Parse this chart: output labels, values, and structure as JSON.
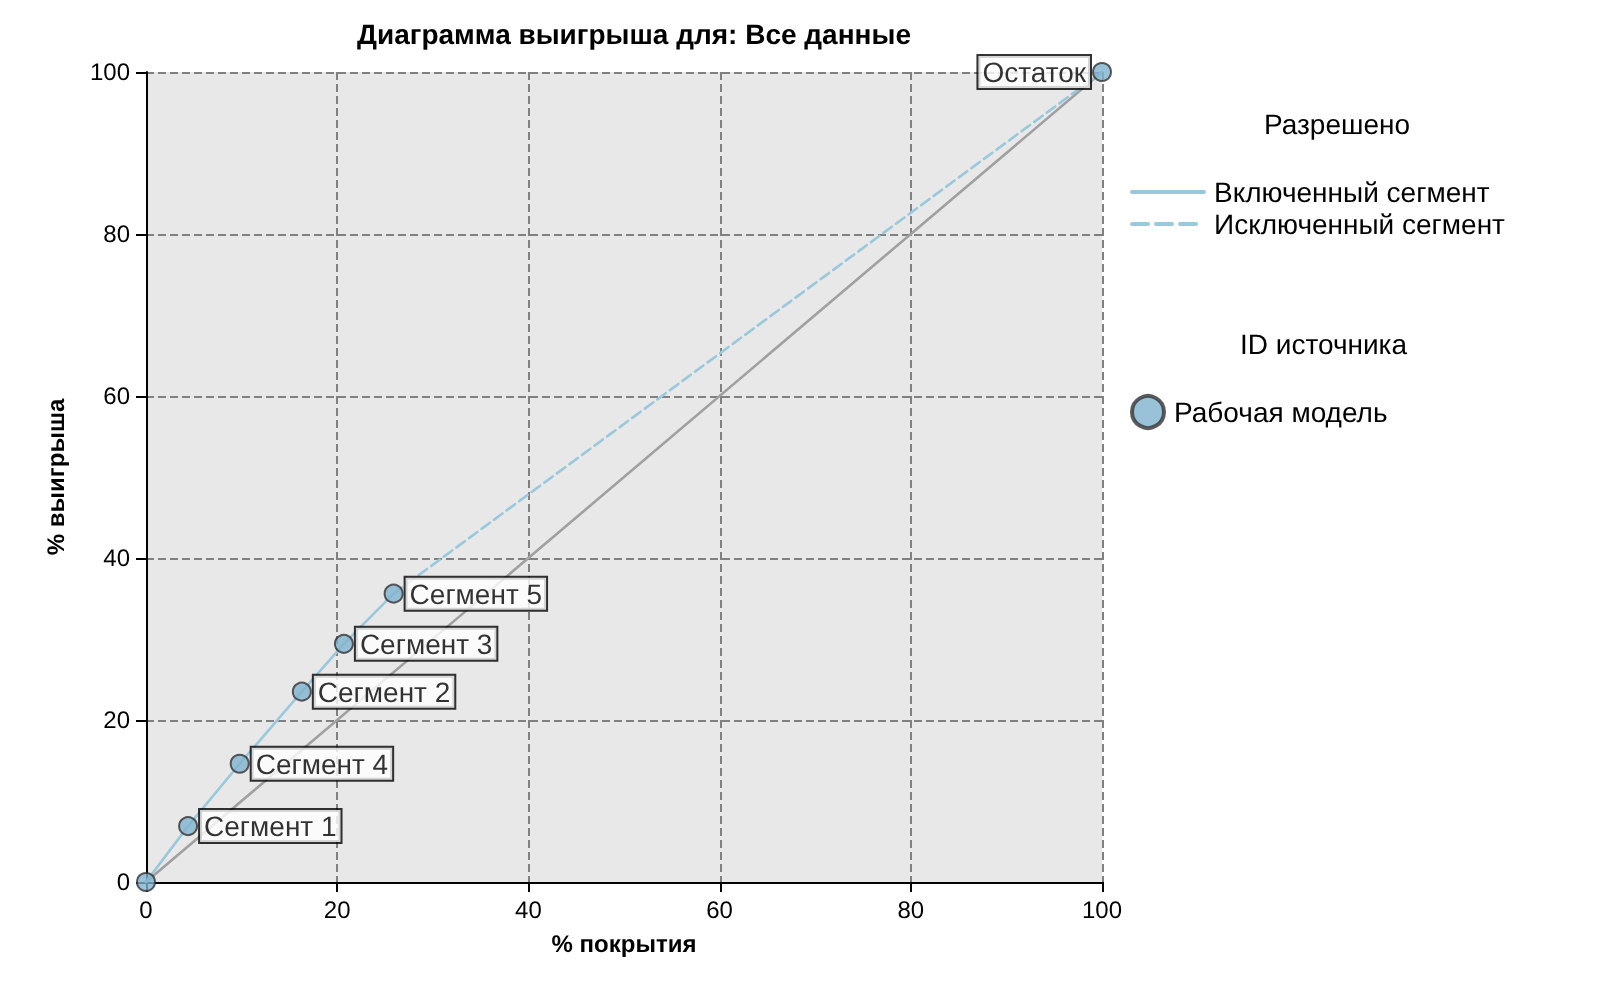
{
  "chart_data": {
    "type": "line",
    "title": "Диаграмма выигрыша для: Все данные",
    "xlabel": "% покрытия",
    "ylabel": "% выигрыша",
    "legend_title": "Разрешено",
    "xlim": [
      0,
      100
    ],
    "ylim": [
      0,
      100
    ],
    "xticks": [
      0,
      20,
      40,
      60,
      80,
      100
    ],
    "yticks": [
      0,
      20,
      40,
      60,
      80,
      100
    ],
    "grid": true,
    "legend": "right",
    "series": [
      {
        "color": "#a0a0a0",
        "x": [
          0,
          100
        ],
        "values": [
          0,
          100
        ],
        "marker": "none",
        "line_style": "solid"
      },
      {
        "name": "Включенный сегмент",
        "color": "#9ac8dc",
        "x": [
          0,
          4.4,
          9.8,
          16.3,
          20.7,
          25.9
        ],
        "values": [
          0,
          6.9,
          14.6,
          23.5,
          29.4,
          35.6
        ],
        "marker": "none",
        "line_style": "solid"
      },
      {
        "name": "Исключенный сегмент",
        "color": "#9ac8dc",
        "x": [
          25.9,
          100
        ],
        "values": [
          35.6,
          100
        ],
        "marker": "none",
        "line_style": "dashed"
      },
      {
        "type": "scatter",
        "name": "Рабочая модель",
        "color": "#7fb3cf",
        "x": [
          0,
          4.4,
          9.8,
          16.3,
          20.7,
          25.9,
          100
        ],
        "values": [
          0,
          6.9,
          14.6,
          23.5,
          29.4,
          35.6,
          100
        ],
        "marker": "circle"
      }
    ],
    "annotations": [
      "ID источника",
      {
        "text": "Сегмент 1",
        "x": 4.4,
        "y": 6.9
      },
      {
        "text": "Сегмент 4",
        "x": 9.8,
        "y": 14.6
      },
      {
        "text": "Сегмент 2",
        "x": 16.3,
        "y": 23.5
      },
      {
        "text": "Сегмент 3",
        "x": 20.7,
        "y": 29.4
      },
      {
        "text": "Сегмент 5",
        "x": 25.9,
        "y": 35.6
      },
      {
        "text": "Остаток",
        "x": 100,
        "y": 100
      }
    ]
  }
}
